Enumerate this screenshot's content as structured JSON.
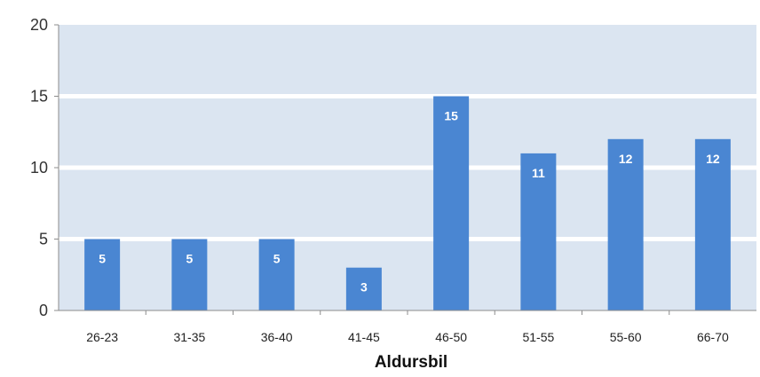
{
  "chart_data": {
    "type": "bar",
    "title": "",
    "xlabel": "Aldursbil",
    "ylabel": "",
    "ylim": [
      0,
      20
    ],
    "yticks": [
      0,
      5,
      10,
      15,
      20
    ],
    "grid": true,
    "categories": [
      "26-23",
      "31-35",
      "36-40",
      "41-45",
      "46-50",
      "51-55",
      "55-60",
      "66-70"
    ],
    "values": [
      5,
      5,
      5,
      3,
      15,
      11,
      12,
      12
    ],
    "colors": {
      "bar": "#4a86d2",
      "plot_background": "#dbe5f1",
      "grid": "#ffffff"
    }
  }
}
